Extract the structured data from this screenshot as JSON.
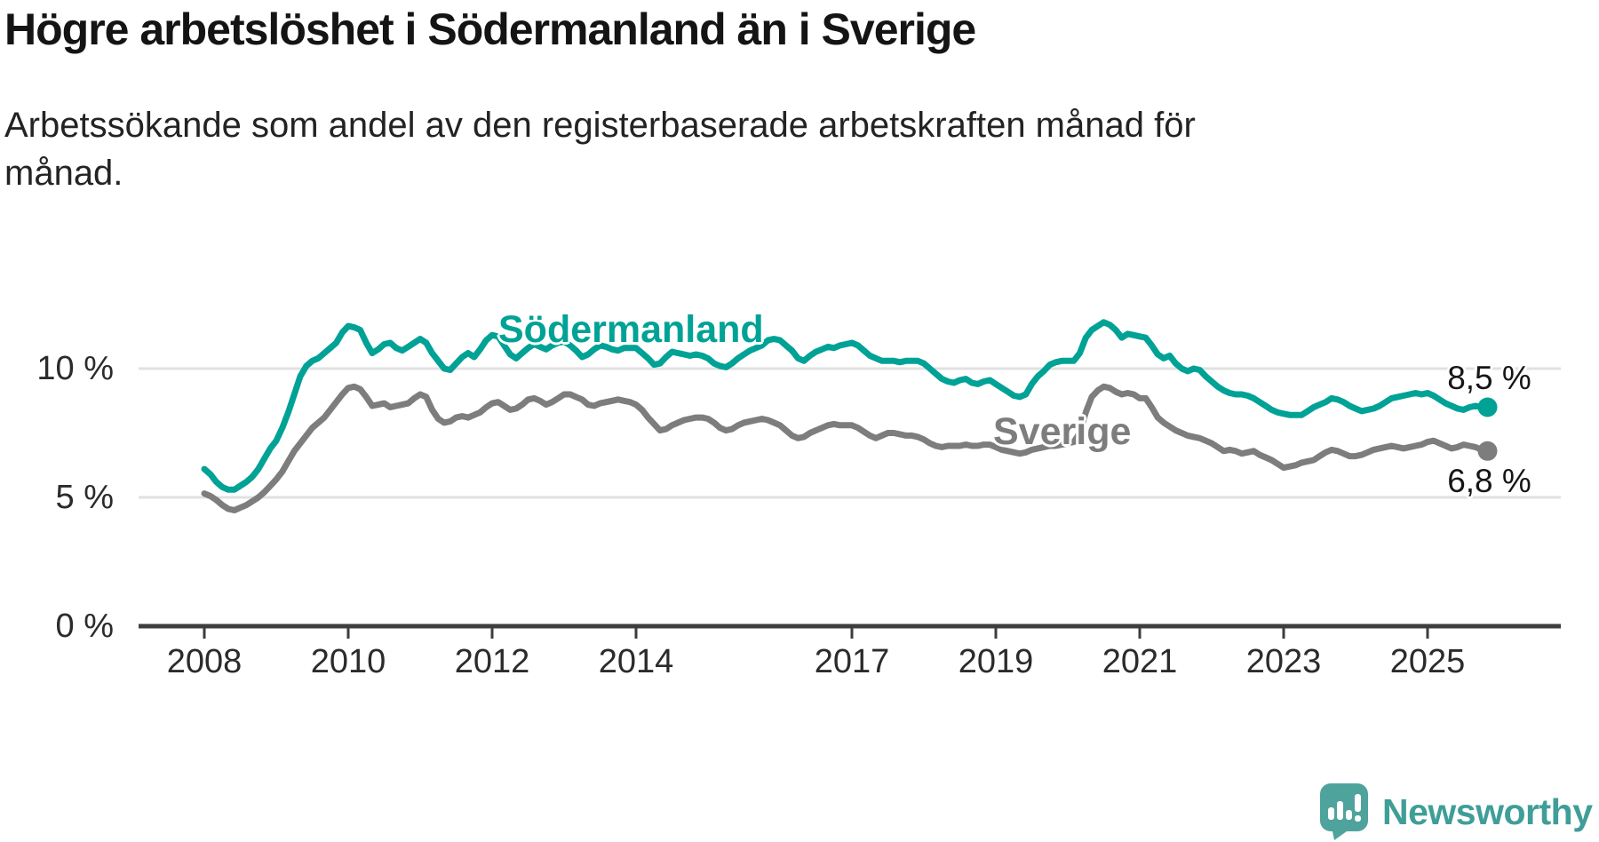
{
  "title": "Högre arbetslöshet i Södermanland än i Sverige",
  "subtitle": "Arbetssökande som andel av den registerbaserade arbetskraften månad för månad.",
  "branding": {
    "logo_text": "Newsworthy"
  },
  "colors": {
    "accent_teal": "#00a296",
    "series_gray": "#7d7d7d",
    "gridline": "#e1e1e1",
    "axis": "#3d3d3d",
    "logo_teal": "#4fa39d",
    "logo_text_teal": "#3f9e97"
  },
  "chart_data": {
    "type": "line",
    "title": "Högre arbetslöshet i Södermanland än i Sverige",
    "subtitle": "Arbetssökande som andel av den registerbaserade arbetskraften månad för månad.",
    "unit": "%",
    "frequency": "monthly",
    "x_start": "2008-01",
    "x_end": "2025-11",
    "ylim": [
      0,
      12.5
    ],
    "grid": "horizontal-only",
    "legend": "inline-labels-on-lines",
    "x_ticks": [
      {
        "year": 2008,
        "label": "2008"
      },
      {
        "year": 2010,
        "label": "2010"
      },
      {
        "year": 2012,
        "label": "2012"
      },
      {
        "year": 2014,
        "label": "2014"
      },
      {
        "year": 2017,
        "label": "2017"
      },
      {
        "year": 2019,
        "label": "2019"
      },
      {
        "year": 2021,
        "label": "2021"
      },
      {
        "year": 2023,
        "label": "2023"
      },
      {
        "year": 2025,
        "label": "2025"
      }
    ],
    "y_ticks": [
      {
        "value": 0,
        "label": "0 %"
      },
      {
        "value": 5,
        "label": "5 %"
      },
      {
        "value": 10,
        "label": "10 %"
      }
    ],
    "series": [
      {
        "name": "Södermanland",
        "color": "#00a296",
        "end_label": "8,5 %",
        "end_value": 8.5,
        "values": [
          6.1,
          5.9,
          5.6,
          5.4,
          5.3,
          5.3,
          5.45,
          5.6,
          5.8,
          6.1,
          6.5,
          6.9,
          7.2,
          7.7,
          8.3,
          9.0,
          9.7,
          10.1,
          10.3,
          10.4,
          10.6,
          10.8,
          11.0,
          11.4,
          11.65,
          11.6,
          11.5,
          11.0,
          10.6,
          10.75,
          10.95,
          11.0,
          10.8,
          10.7,
          10.85,
          11.0,
          11.15,
          11.0,
          10.6,
          10.3,
          10.0,
          9.95,
          10.2,
          10.45,
          10.6,
          10.45,
          10.75,
          11.1,
          11.3,
          11.25,
          10.9,
          10.55,
          10.4,
          10.6,
          10.8,
          10.95,
          10.85,
          10.75,
          10.9,
          11.0,
          11.05,
          10.9,
          10.7,
          10.45,
          10.55,
          10.75,
          10.9,
          10.85,
          10.75,
          10.7,
          10.8,
          10.8,
          10.8,
          10.6,
          10.4,
          10.15,
          10.2,
          10.45,
          10.65,
          10.6,
          10.55,
          10.5,
          10.55,
          10.5,
          10.4,
          10.2,
          10.1,
          10.05,
          10.2,
          10.4,
          10.55,
          10.7,
          10.8,
          10.9,
          11.1,
          11.15,
          11.1,
          10.9,
          10.7,
          10.4,
          10.3,
          10.5,
          10.65,
          10.75,
          10.85,
          10.8,
          10.9,
          10.95,
          11.0,
          10.9,
          10.7,
          10.5,
          10.4,
          10.3,
          10.3,
          10.3,
          10.25,
          10.3,
          10.3,
          10.3,
          10.2,
          10.0,
          9.8,
          9.6,
          9.5,
          9.45,
          9.55,
          9.6,
          9.45,
          9.4,
          9.5,
          9.55,
          9.4,
          9.25,
          9.1,
          8.95,
          8.9,
          9.0,
          9.4,
          9.7,
          9.9,
          10.15,
          10.25,
          10.3,
          10.3,
          10.3,
          10.6,
          11.2,
          11.5,
          11.65,
          11.8,
          11.7,
          11.5,
          11.2,
          11.35,
          11.3,
          11.25,
          11.2,
          10.9,
          10.55,
          10.4,
          10.5,
          10.2,
          10.0,
          9.9,
          10.0,
          9.95,
          9.7,
          9.5,
          9.3,
          9.15,
          9.05,
          9.0,
          9.0,
          8.95,
          8.85,
          8.7,
          8.55,
          8.4,
          8.3,
          8.25,
          8.2,
          8.2,
          8.2,
          8.35,
          8.5,
          8.6,
          8.7,
          8.85,
          8.8,
          8.7,
          8.55,
          8.45,
          8.35,
          8.4,
          8.45,
          8.55,
          8.7,
          8.85,
          8.9,
          8.95,
          9.0,
          9.05,
          9.0,
          9.05,
          8.95,
          8.8,
          8.65,
          8.55,
          8.45,
          8.4,
          8.5,
          8.55,
          8.5,
          8.5
        ]
      },
      {
        "name": "Sverige",
        "color": "#7d7d7d",
        "end_label": "6,8 %",
        "end_value": 6.8,
        "values": [
          5.15,
          5.05,
          4.9,
          4.7,
          4.55,
          4.5,
          4.6,
          4.7,
          4.85,
          5.0,
          5.2,
          5.45,
          5.7,
          6.0,
          6.4,
          6.8,
          7.1,
          7.4,
          7.7,
          7.9,
          8.1,
          8.4,
          8.7,
          9.0,
          9.25,
          9.3,
          9.2,
          8.9,
          8.55,
          8.6,
          8.65,
          8.5,
          8.55,
          8.6,
          8.65,
          8.85,
          9.0,
          8.9,
          8.4,
          8.05,
          7.9,
          7.95,
          8.1,
          8.15,
          8.1,
          8.2,
          8.3,
          8.5,
          8.65,
          8.7,
          8.55,
          8.4,
          8.45,
          8.6,
          8.8,
          8.85,
          8.75,
          8.6,
          8.7,
          8.85,
          9.0,
          9.0,
          8.9,
          8.8,
          8.6,
          8.55,
          8.65,
          8.7,
          8.75,
          8.8,
          8.75,
          8.7,
          8.6,
          8.4,
          8.1,
          7.85,
          7.6,
          7.65,
          7.8,
          7.9,
          8.0,
          8.05,
          8.1,
          8.1,
          8.05,
          7.9,
          7.7,
          7.6,
          7.65,
          7.8,
          7.9,
          7.95,
          8.0,
          8.05,
          8.0,
          7.9,
          7.8,
          7.6,
          7.4,
          7.3,
          7.35,
          7.5,
          7.6,
          7.7,
          7.8,
          7.85,
          7.8,
          7.8,
          7.8,
          7.7,
          7.55,
          7.4,
          7.3,
          7.4,
          7.5,
          7.5,
          7.45,
          7.4,
          7.4,
          7.35,
          7.25,
          7.1,
          7.0,
          6.95,
          7.0,
          7.0,
          7.0,
          7.05,
          7.0,
          7.0,
          7.05,
          7.05,
          6.95,
          6.85,
          6.8,
          6.75,
          6.7,
          6.75,
          6.85,
          6.9,
          6.95,
          7.0,
          7.0,
          7.05,
          7.1,
          7.15,
          7.5,
          8.3,
          8.9,
          9.15,
          9.3,
          9.25,
          9.1,
          9.0,
          9.05,
          9.0,
          8.85,
          8.85,
          8.5,
          8.1,
          7.9,
          7.75,
          7.6,
          7.5,
          7.4,
          7.35,
          7.3,
          7.2,
          7.1,
          6.95,
          6.8,
          6.85,
          6.8,
          6.7,
          6.75,
          6.8,
          6.65,
          6.55,
          6.45,
          6.3,
          6.15,
          6.2,
          6.25,
          6.35,
          6.4,
          6.45,
          6.6,
          6.75,
          6.85,
          6.8,
          6.7,
          6.6,
          6.6,
          6.65,
          6.75,
          6.85,
          6.9,
          6.95,
          7.0,
          6.95,
          6.9,
          6.95,
          7.0,
          7.05,
          7.15,
          7.2,
          7.1,
          7.0,
          6.9,
          6.95,
          7.05,
          7.0,
          6.95,
          6.85,
          6.8
        ]
      }
    ]
  }
}
